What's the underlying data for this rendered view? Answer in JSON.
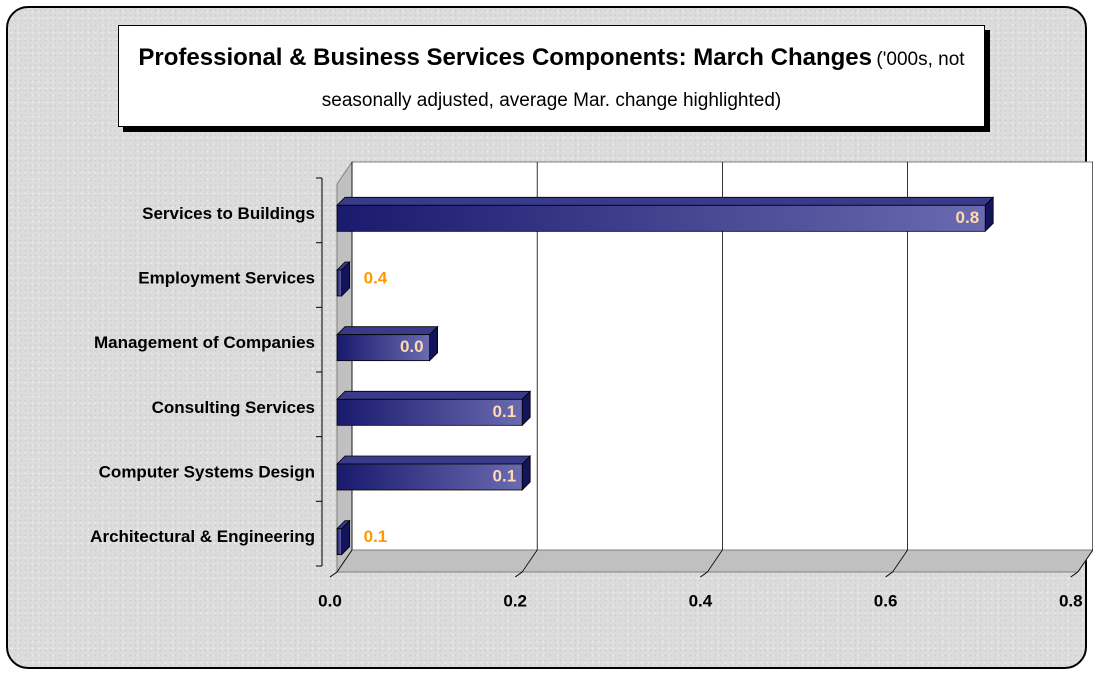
{
  "chart_data": {
    "type": "hbar3d",
    "title": "Professional & Business Services Components: March Changes",
    "subtitle": "('000s, not seasonally adjusted, average Mar. change highlighted)",
    "categories": [
      "Services to Buildings",
      "Employment Services",
      "Management of Companies",
      "Consulting Services",
      "Computer Systems Design",
      "Architectural & Engineering"
    ],
    "values": [
      0.7,
      0.005,
      0.1,
      0.2,
      0.2,
      0.005
    ],
    "labels": [
      "0.8",
      "0.4",
      "0.0",
      "0.1",
      "0.1",
      "0.1"
    ],
    "color": "#1f1f7a",
    "xlim": [
      0,
      0.8
    ],
    "xticks": [
      {
        "value": 0,
        "label": "0.0"
      },
      0.2,
      0.4,
      0.6,
      0.8
    ],
    "grid": true
  }
}
